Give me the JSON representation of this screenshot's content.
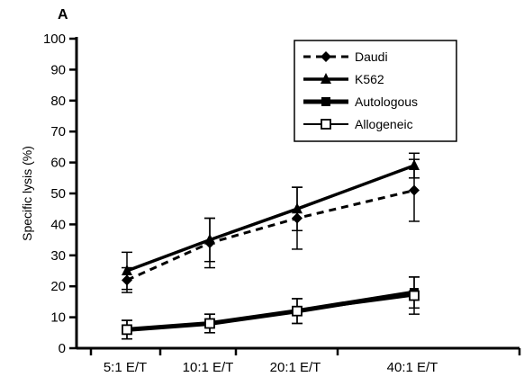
{
  "panel_label": "A",
  "chart_data": {
    "type": "line",
    "title": "",
    "xlabel": "",
    "ylabel": "Specific lysis (%)",
    "ylim": [
      0,
      100
    ],
    "yticks": [
      0,
      10,
      20,
      30,
      40,
      50,
      60,
      70,
      80,
      90,
      100
    ],
    "categories": [
      "5:1 E/T",
      "10:1 E/T",
      "20:1 E/T",
      "40:1 E/T"
    ],
    "grid": false,
    "legend_position": "top-right",
    "series": [
      {
        "name": "Daudi",
        "marker": "diamond-filled",
        "line_style": "dashed",
        "values": [
          22,
          34,
          42,
          51
        ],
        "errors": [
          4,
          8,
          10,
          10
        ]
      },
      {
        "name": "K562",
        "marker": "triangle-filled",
        "line_style": "solid-thick",
        "values": [
          25,
          35,
          45,
          59
        ],
        "errors": [
          6,
          7,
          7,
          4
        ]
      },
      {
        "name": "Autologous",
        "marker": "square-filled",
        "line_style": "solid-heavy",
        "values": [
          6,
          8,
          12,
          18
        ],
        "errors": [
          3,
          3,
          4,
          5
        ]
      },
      {
        "name": "Allogeneic",
        "marker": "square-open",
        "line_style": "solid-thin",
        "values": [
          6,
          8,
          12,
          17
        ],
        "errors": [
          3,
          3,
          4,
          6
        ]
      }
    ]
  }
}
